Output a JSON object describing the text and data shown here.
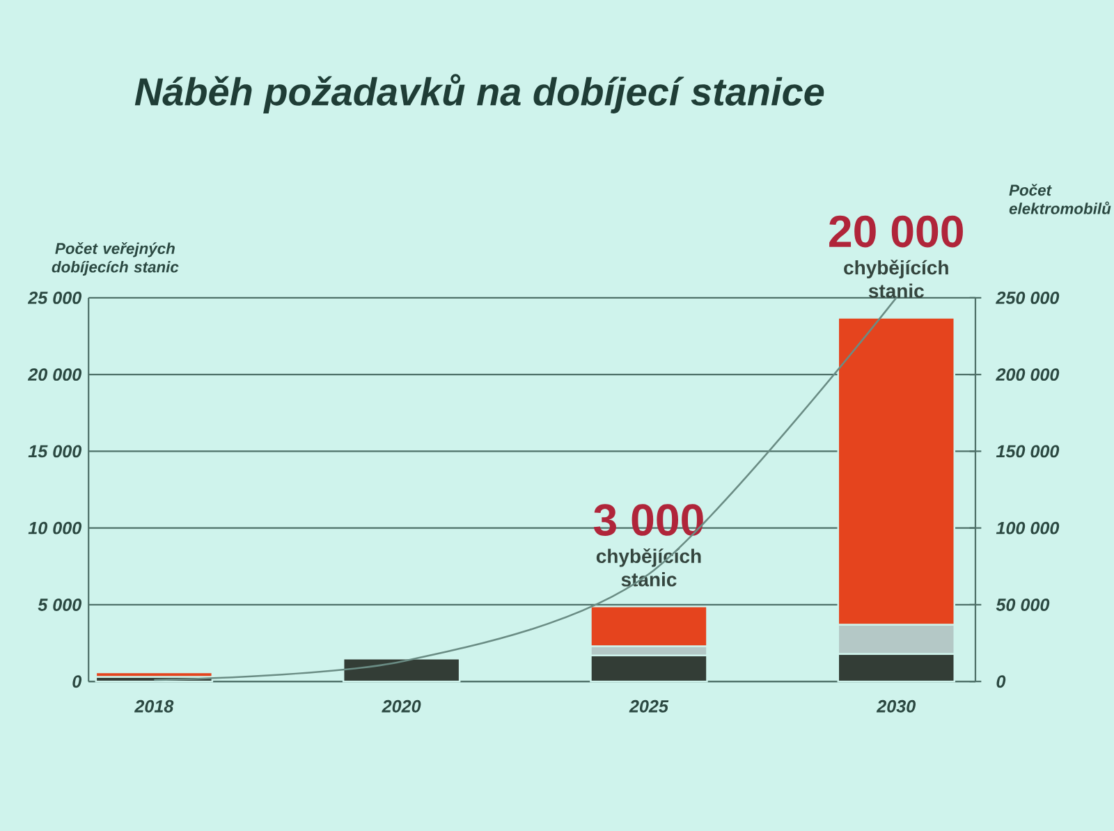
{
  "chart_data": {
    "type": "bar",
    "title": "Náběh požadavků na dobíjecí stanice",
    "ylabel": "Počet veřejných dobíjecích stanic",
    "y2label": "Počet elektromobilů",
    "categories": [
      "2018",
      "2020",
      "2025",
      "2030"
    ],
    "stacked": true,
    "series": [
      {
        "color": "#333d36",
        "values": [
          300,
          1500,
          1700,
          1800
        ]
      },
      {
        "color": "#b4c8c6",
        "values": [
          null,
          null,
          600,
          1900
        ]
      },
      {
        "color": "#e5441e",
        "values": [
          300,
          null,
          2600,
          20000
        ]
      },
      {
        "type": "line",
        "axis": "y2",
        "color": "#6a8c84",
        "values": [
          1000,
          13000,
          70000,
          250000
        ]
      }
    ],
    "ylim": [
      0,
      25000
    ],
    "yticks": [
      0,
      {
        "value": 5000,
        "label": "5 000"
      },
      {
        "value": 10000,
        "label": "10 000"
      },
      {
        "value": 15000,
        "label": "15 000"
      },
      {
        "value": 20000,
        "label": "20 000"
      },
      {
        "value": 25000,
        "label": "25 000"
      }
    ],
    "y2lim": [
      0,
      250000
    ],
    "y2ticks": [
      0,
      {
        "value": 50000,
        "label": "50 000"
      },
      {
        "value": 100000,
        "label": "100 000"
      },
      {
        "value": 150000,
        "label": "150 000"
      },
      {
        "value": 200000,
        "label": "200 000"
      },
      {
        "value": 250000,
        "label": "250 000"
      }
    ],
    "grid": "y",
    "marker": "none",
    "line_style": "solid",
    "annotations": [
      {
        "text": "3 000",
        "x": "2025",
        "y": 4900
      },
      {
        "text": "chybějících stanic",
        "x": "2025",
        "y": 4900
      },
      {
        "text": "20 000",
        "x": "2030",
        "y": 23700
      },
      {
        "text": "chybějících stanic",
        "x": "2030",
        "y": 23700
      }
    ]
  }
}
